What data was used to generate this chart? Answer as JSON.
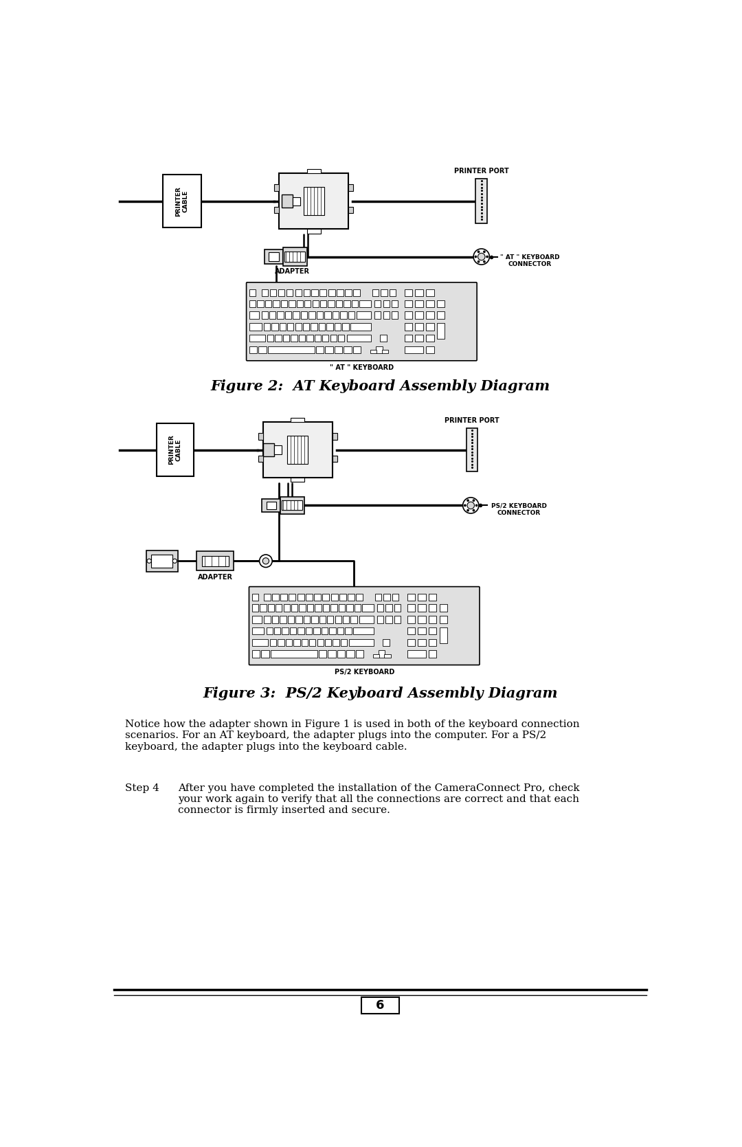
{
  "bg_color": "#ffffff",
  "fig_width": 10.8,
  "fig_height": 16.69,
  "title_fig2": "Figure 2:  AT Keyboard Assembly Diagram",
  "title_fig3": "Figure 3:  PS/2 Keyboard Assembly Diagram",
  "label_printer_cable": "PRINTER\nCABLE",
  "label_adapter": "ADAPTER",
  "label_printer_port": "PRINTER PORT",
  "label_at_keyboard_connector": "\" AT \" KEYBOARD\nCONNECTOR",
  "label_at_keyboard": "\" AT \" KEYBOARD",
  "label_ps2_keyboard_connector": "PS/2 KEYBOARD\nCONNECTOR",
  "label_ps2_keyboard": "PS/2 KEYBOARD",
  "label_adapter2": "ADAPTER",
  "notice_text": "Notice how the adapter shown in Figure 1 is used in both of the keyboard connection\nscenarios. For an AT keyboard, the adapter plugs into the computer. For a PS/2\nkeyboard, the adapter plugs into the keyboard cable.",
  "step4_label": "Step 4",
  "step4_text": "After you have completed the installation of the CameraConnect Pro, check\nyour work again to verify that all the connections are correct and that each\nconnector is firmly inserted and secure.",
  "page_number": "6",
  "line_color": "#000000",
  "fill_color_light": "#d8d8d8",
  "fill_color_white": "#ffffff"
}
